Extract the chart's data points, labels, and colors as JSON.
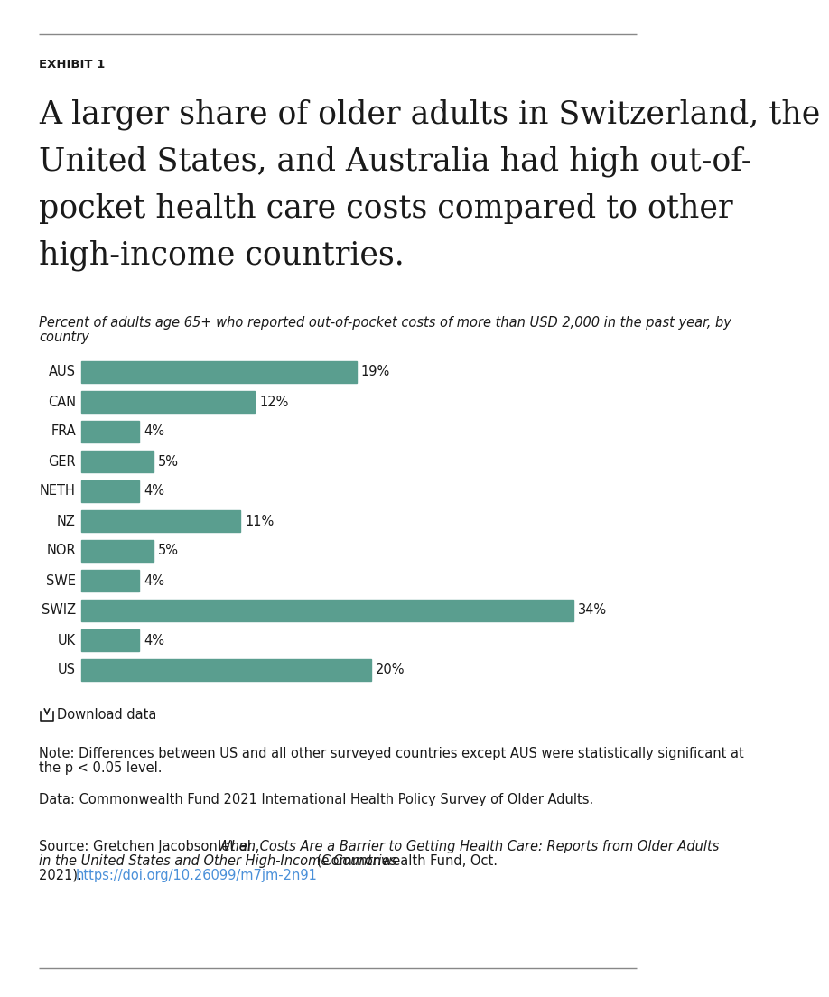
{
  "exhibit_label": "EXHIBIT 1",
  "title_line1": "A larger share of older adults in Switzerland, the",
  "title_line2": "United States, and Australia had high out-of-",
  "title_line3": "pocket health care costs compared to other",
  "title_line4": "high-income countries.",
  "subtitle_line1": "Percent of adults age 65+ who reported out-of-pocket costs of more than USD 2,000 in the past year, by",
  "subtitle_line2": "country",
  "countries": [
    "AUS",
    "CAN",
    "FRA",
    "GER",
    "NETH",
    "NZ",
    "NOR",
    "SWE",
    "SWIZ",
    "UK",
    "US"
  ],
  "values": [
    19,
    12,
    4,
    5,
    4,
    11,
    5,
    4,
    34,
    4,
    20
  ],
  "bar_color": "#5a9e8f",
  "background_color": "#ffffff",
  "label_color": "#1a1a1a",
  "note_line1": "Note: Differences between US and all other surveyed countries except AUS were statistically significant at",
  "note_line2": "the p < 0.05 level.",
  "data_source": "Data: Commonwealth Fund 2021 International Health Policy Survey of Older Adults.",
  "source_pre": "Source: Gretchen Jacobson et al., ",
  "source_italic": "When Costs Are a Barrier to Getting Health Care: Reports from Older Adults",
  "source_italic2": "in the United States and Other High-Income Countries",
  "source_post": " (Commonwealth Fund, Oct.",
  "source_post2": "2021). ",
  "source_url": "https://doi.org/10.26099/m7jm-2n91",
  "download_text": "Download data",
  "top_rule_color": "#888888",
  "bottom_rule_color": "#888888",
  "bar_label_fontsize": 10.5,
  "country_label_fontsize": 10.5,
  "note_fontsize": 10.5,
  "subtitle_fontsize": 10.5,
  "max_val": 34
}
